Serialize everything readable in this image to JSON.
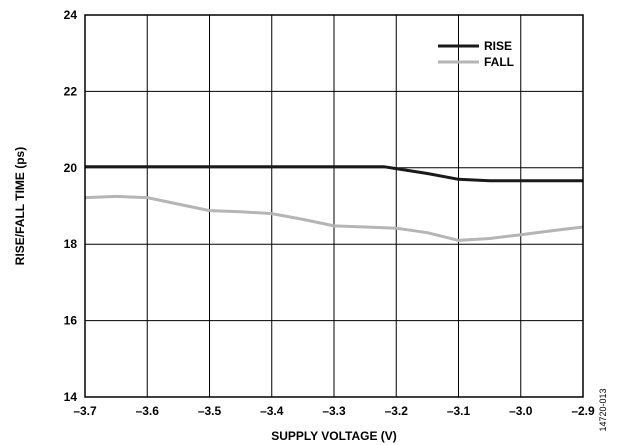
{
  "chart_data": {
    "type": "line",
    "title": "",
    "xlabel": "SUPPLY VOLTAGE (V)",
    "ylabel": "RISE/FALL TIME (ps)",
    "xlim": [
      -3.7,
      -2.9
    ],
    "ylim": [
      14,
      24
    ],
    "x_ticks": [
      -3.7,
      -3.6,
      -3.5,
      -3.4,
      -3.3,
      -3.2,
      -3.1,
      -3.0,
      -2.9
    ],
    "x_tick_labels": [
      "–3.7",
      "–3.6",
      "–3.5",
      "–3.4",
      "–3.3",
      "–3.2",
      "–3.1",
      "–3.0",
      "–2.9"
    ],
    "y_ticks": [
      14,
      16,
      18,
      20,
      22,
      24
    ],
    "y_tick_labels": [
      "14",
      "16",
      "18",
      "20",
      "22",
      "24"
    ],
    "grid": true,
    "legend_position": "top-right",
    "series": [
      {
        "name": "RISE",
        "color": "#1a1a1a",
        "x": [
          -3.7,
          -3.6,
          -3.5,
          -3.4,
          -3.3,
          -3.22,
          -3.2,
          -3.15,
          -3.1,
          -3.05,
          -3.0,
          -2.9
        ],
        "y": [
          20.03,
          20.03,
          20.03,
          20.03,
          20.03,
          20.03,
          19.98,
          19.85,
          19.7,
          19.66,
          19.66,
          19.66
        ]
      },
      {
        "name": "FALL",
        "color": "#b5b5b5",
        "x": [
          -3.7,
          -3.65,
          -3.6,
          -3.55,
          -3.5,
          -3.45,
          -3.4,
          -3.35,
          -3.3,
          -3.25,
          -3.2,
          -3.15,
          -3.1,
          -3.05,
          -3.0,
          -2.95,
          -2.9
        ],
        "y": [
          19.22,
          19.25,
          19.22,
          19.05,
          18.88,
          18.85,
          18.8,
          18.65,
          18.48,
          18.45,
          18.42,
          18.3,
          18.1,
          18.15,
          18.25,
          18.35,
          18.45
        ]
      }
    ]
  },
  "figure_id": "14720-013"
}
